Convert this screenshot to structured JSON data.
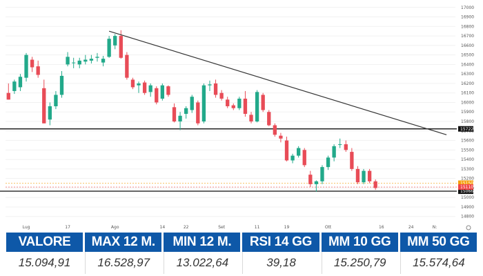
{
  "chart_data": {
    "type": "candlestick",
    "y_ticks": [
      14800,
      14900,
      15000,
      15100,
      15200,
      15300,
      15400,
      15500,
      15600,
      15700,
      15800,
      15900,
      16000,
      16100,
      16200,
      16300,
      16400,
      16500,
      16600,
      16700,
      16800,
      16900,
      17000
    ],
    "ylim": [
      14740,
      17020
    ],
    "x_labels": [
      {
        "label": "Lug",
        "index": 3
      },
      {
        "label": "17",
        "index": 10
      },
      {
        "label": "Ago",
        "index": 18
      },
      {
        "label": "14",
        "index": 26
      },
      {
        "label": "22",
        "index": 30
      },
      {
        "label": "Set",
        "index": 36
      },
      {
        "label": "11",
        "index": 42
      },
      {
        "label": "19",
        "index": 47
      },
      {
        "label": "Ott",
        "index": 54
      },
      {
        "label": "16",
        "index": 63
      },
      {
        "label": "24",
        "index": 68
      },
      {
        "label": "N:",
        "index": 72
      }
    ],
    "x_count": 76,
    "candles": [
      [
        16100,
        16200,
        16030,
        16030
      ],
      [
        16120,
        16240,
        16090,
        16220
      ],
      [
        16160,
        16300,
        16120,
        16270
      ],
      [
        16260,
        16520,
        16220,
        16500
      ],
      [
        16450,
        16480,
        16320,
        16370
      ],
      [
        16380,
        16440,
        16260,
        16290
      ],
      [
        16150,
        16240,
        15780,
        15780
      ],
      [
        15820,
        16000,
        15760,
        15960
      ],
      [
        15960,
        16120,
        15930,
        16080
      ],
      [
        16080,
        16330,
        16050,
        16280
      ],
      [
        16400,
        16530,
        16380,
        16480
      ],
      [
        16420,
        16470,
        16360,
        16420
      ],
      [
        16400,
        16470,
        16360,
        16440
      ],
      [
        16430,
        16500,
        16400,
        16450
      ],
      [
        16440,
        16500,
        16410,
        16460
      ],
      [
        16470,
        16520,
        16430,
        16480
      ],
      [
        16420,
        16490,
        16380,
        16460
      ],
      [
        16480,
        16700,
        16470,
        16670
      ],
      [
        16600,
        16720,
        16560,
        16700
      ],
      [
        16700,
        16760,
        16460,
        16470
      ],
      [
        16500,
        16530,
        16240,
        16260
      ],
      [
        16240,
        16260,
        16140,
        16160
      ],
      [
        16180,
        16220,
        16100,
        16200
      ],
      [
        16210,
        16230,
        16080,
        16100
      ],
      [
        16110,
        16200,
        16060,
        16180
      ],
      [
        16150,
        16170,
        15980,
        16000
      ],
      [
        16040,
        16200,
        16020,
        16180
      ],
      [
        16170,
        16180,
        16060,
        16080
      ],
      [
        15950,
        15990,
        15790,
        15800
      ],
      [
        15800,
        15900,
        15710,
        15860
      ],
      [
        15880,
        15960,
        15830,
        15940
      ],
      [
        15920,
        16080,
        15890,
        16060
      ],
      [
        16000,
        16020,
        15760,
        15780
      ],
      [
        15800,
        16200,
        15780,
        16180
      ],
      [
        16180,
        16230,
        16120,
        16190
      ],
      [
        16200,
        16240,
        16050,
        16080
      ],
      [
        16100,
        16130,
        16020,
        16040
      ],
      [
        16030,
        16060,
        15940,
        15960
      ],
      [
        15970,
        15990,
        15920,
        15940
      ],
      [
        15940,
        16060,
        15920,
        16040
      ],
      [
        16040,
        16120,
        15850,
        15880
      ],
      [
        15870,
        15900,
        15780,
        15800
      ],
      [
        15800,
        16130,
        15790,
        16110
      ],
      [
        16080,
        16100,
        15900,
        15920
      ],
      [
        15900,
        15920,
        15750,
        15760
      ],
      [
        15760,
        15780,
        15640,
        15660
      ],
      [
        15650,
        15680,
        15580,
        15620
      ],
      [
        15600,
        15640,
        15380,
        15390
      ],
      [
        15390,
        15460,
        15360,
        15440
      ],
      [
        15440,
        15540,
        15420,
        15520
      ],
      [
        15500,
        15520,
        15320,
        15340
      ],
      [
        15240,
        15280,
        15110,
        15140
      ],
      [
        15140,
        15180,
        15060,
        15170
      ],
      [
        15170,
        15340,
        15140,
        15320
      ],
      [
        15320,
        15440,
        15290,
        15420
      ],
      [
        15420,
        15560,
        15380,
        15540
      ],
      [
        15560,
        15620,
        15520,
        15560
      ],
      [
        15560,
        15600,
        15480,
        15500
      ],
      [
        15480,
        15520,
        15280,
        15300
      ],
      [
        15300,
        15330,
        15140,
        15160
      ],
      [
        15160,
        15300,
        15140,
        15280
      ],
      [
        15280,
        15300,
        15150,
        15170
      ],
      [
        15170,
        15190,
        15080,
        15100
      ]
    ],
    "trendline": {
      "from": [
        17,
        16750
      ],
      "to": [
        74,
        15660
      ]
    },
    "horizontal_levels": [
      {
        "value": 15722,
        "label": "15722",
        "color": "#222222"
      },
      {
        "value": 15066,
        "label": "15066",
        "color": "#222222"
      }
    ],
    "price_badges": [
      {
        "value": 15150,
        "label": "15150",
        "color": "#f59e0b"
      },
      {
        "value": 15110,
        "label": "15110",
        "color": "#ef4444"
      }
    ],
    "up_color": "#22a98a",
    "down_color": "#e84c57"
  },
  "stats": {
    "headers": [
      "VALORE",
      "MAX 12 M.",
      "MIN 12 M.",
      "RSI 14 GG",
      "MM 10 GG",
      "MM 50 GG"
    ],
    "values": [
      "15.094,91",
      "16.528,97",
      "13.022,64",
      "39,18",
      "15.250,79",
      "15.574,64"
    ],
    "header_color": "#0e58a8"
  }
}
